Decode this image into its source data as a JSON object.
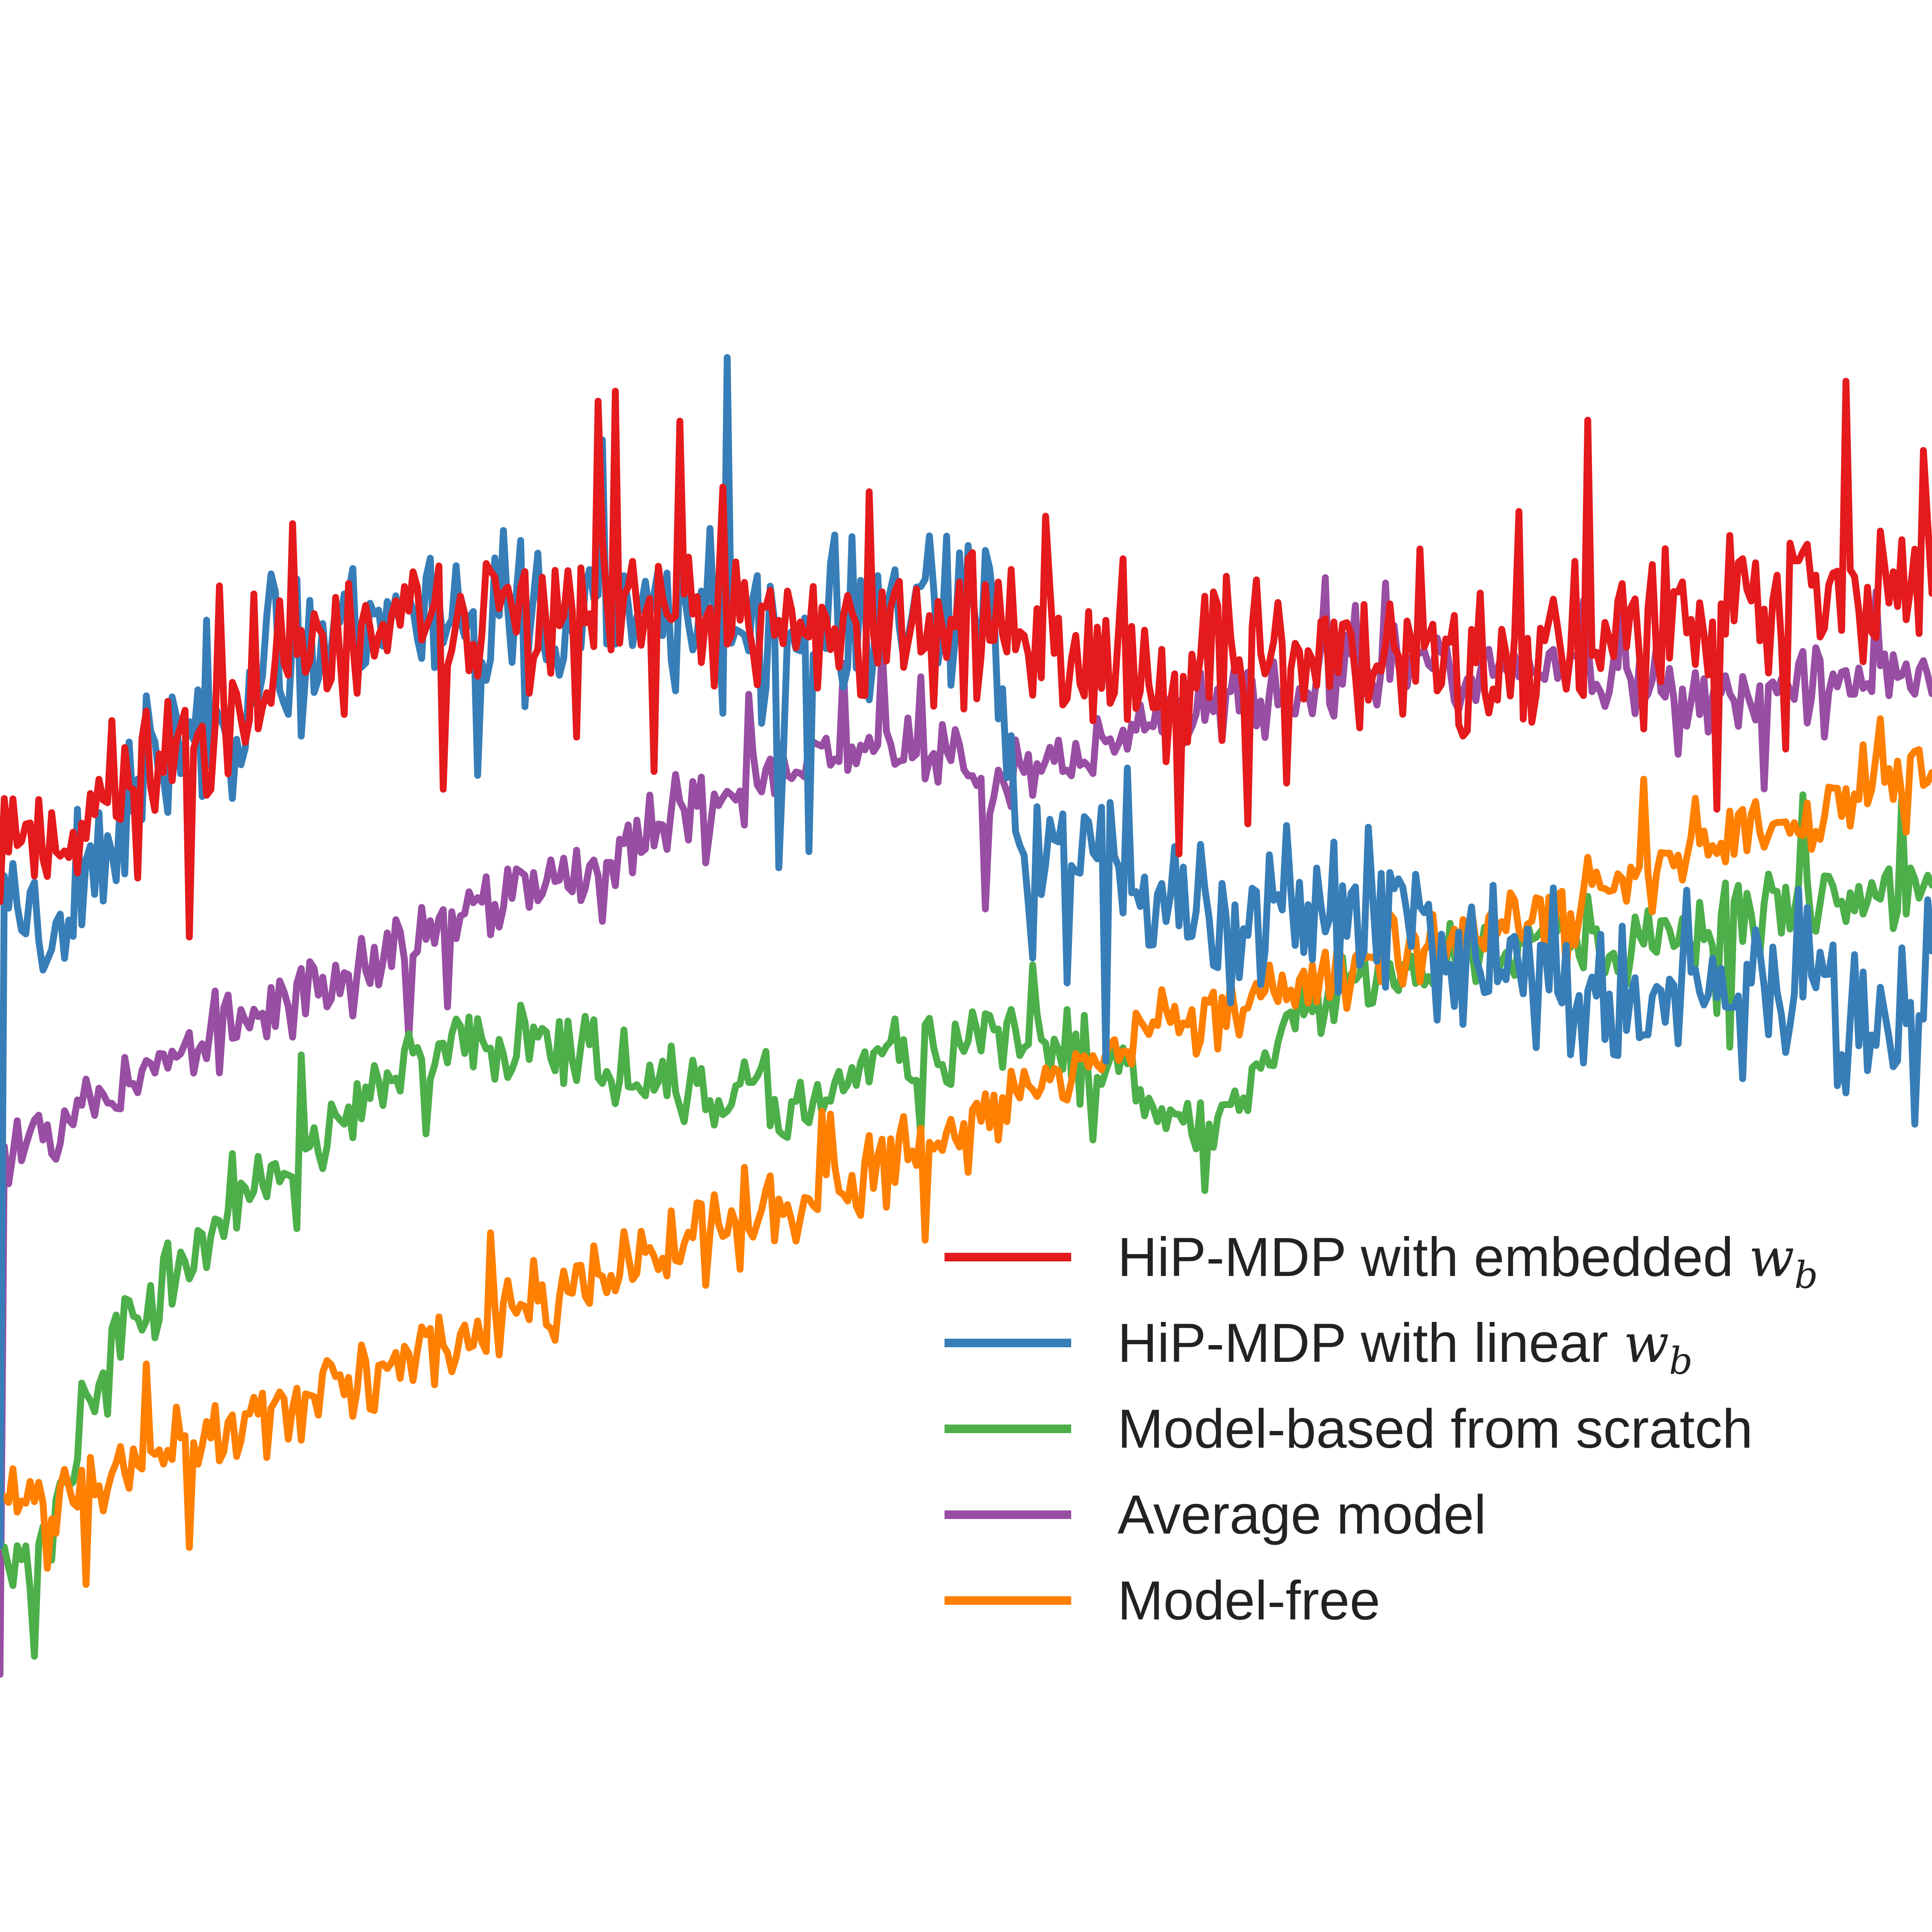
{
  "chart_data": {
    "type": "line",
    "title": "",
    "xlabel": "",
    "ylabel": "",
    "grid": false,
    "legend_position": "lower-right",
    "x": {
      "start": 0,
      "count": 450
    },
    "series": [
      {
        "key": "embedded",
        "name": "HiP-MDP with embedded ",
        "math": "w",
        "math_sub": "b",
        "color": "#e41a1c",
        "anchors": [
          [
            0,
            0.6
          ],
          [
            1,
            0.68
          ],
          [
            10,
            0.64
          ],
          [
            25,
            0.68
          ],
          [
            40,
            0.72
          ],
          [
            60,
            0.76
          ],
          [
            80,
            0.8
          ],
          [
            100,
            0.82
          ],
          [
            130,
            0.82
          ],
          [
            160,
            0.82
          ],
          [
            200,
            0.81
          ],
          [
            230,
            0.81
          ],
          [
            265,
            0.78
          ],
          [
            300,
            0.8
          ],
          [
            340,
            0.78
          ],
          [
            380,
            0.81
          ],
          [
            420,
            0.84
          ],
          [
            449,
            0.86
          ]
        ],
        "noise": 0.055,
        "seed": 11
      },
      {
        "key": "linear",
        "name": "HiP-MDP with linear ",
        "math": "w",
        "math_sub": "b",
        "color": "#377eb8",
        "anchors": [
          [
            0,
            0.1
          ],
          [
            1,
            0.62
          ],
          [
            10,
            0.58
          ],
          [
            25,
            0.65
          ],
          [
            40,
            0.72
          ],
          [
            60,
            0.77
          ],
          [
            80,
            0.82
          ],
          [
            100,
            0.83
          ],
          [
            130,
            0.82
          ],
          [
            160,
            0.82
          ],
          [
            200,
            0.81
          ],
          [
            230,
            0.83
          ],
          [
            236,
            0.67
          ],
          [
            260,
            0.63
          ],
          [
            280,
            0.58
          ],
          [
            310,
            0.6
          ],
          [
            340,
            0.56
          ],
          [
            380,
            0.52
          ],
          [
            410,
            0.53
          ],
          [
            449,
            0.52
          ]
        ],
        "noise": 0.06,
        "seed": 23
      },
      {
        "key": "scratch",
        "name": "Model-based from scratch",
        "math": "",
        "math_sub": "",
        "color": "#4daf4a",
        "anchors": [
          [
            0,
            0.1
          ],
          [
            10,
            0.09
          ],
          [
            15,
            0.15
          ],
          [
            20,
            0.2
          ],
          [
            30,
            0.27
          ],
          [
            45,
            0.33
          ],
          [
            60,
            0.38
          ],
          [
            80,
            0.43
          ],
          [
            100,
            0.48
          ],
          [
            130,
            0.5
          ],
          [
            155,
            0.45
          ],
          [
            185,
            0.44
          ],
          [
            210,
            0.48
          ],
          [
            235,
            0.49
          ],
          [
            260,
            0.48
          ],
          [
            275,
            0.42
          ],
          [
            290,
            0.45
          ],
          [
            300,
            0.52
          ],
          [
            330,
            0.55
          ],
          [
            360,
            0.58
          ],
          [
            380,
            0.56
          ],
          [
            420,
            0.6
          ],
          [
            449,
            0.61
          ]
        ],
        "noise": 0.03,
        "seed": 37
      },
      {
        "key": "average",
        "name": "Average model",
        "math": "",
        "math_sub": "",
        "color": "#984ea3",
        "anchors": [
          [
            0,
            0.0
          ],
          [
            1,
            0.41
          ],
          [
            10,
            0.43
          ],
          [
            30,
            0.46
          ],
          [
            60,
            0.51
          ],
          [
            90,
            0.56
          ],
          [
            115,
            0.6
          ],
          [
            140,
            0.64
          ],
          [
            170,
            0.69
          ],
          [
            195,
            0.72
          ],
          [
            215,
            0.72
          ],
          [
            230,
            0.68
          ],
          [
            250,
            0.72
          ],
          [
            280,
            0.75
          ],
          [
            320,
            0.78
          ],
          [
            360,
            0.78
          ],
          [
            400,
            0.76
          ],
          [
            449,
            0.78
          ]
        ],
        "noise": 0.028,
        "seed": 53
      },
      {
        "key": "modelfree",
        "name": "Model-free",
        "math": "",
        "math_sub": "",
        "color": "#ff7f00",
        "anchors": [
          [
            0,
            0.14
          ],
          [
            5,
            0.13
          ],
          [
            30,
            0.16
          ],
          [
            60,
            0.2
          ],
          [
            100,
            0.25
          ],
          [
            140,
            0.31
          ],
          [
            180,
            0.36
          ],
          [
            210,
            0.4
          ],
          [
            240,
            0.45
          ],
          [
            270,
            0.5
          ],
          [
            300,
            0.54
          ],
          [
            330,
            0.57
          ],
          [
            360,
            0.6
          ],
          [
            390,
            0.63
          ],
          [
            420,
            0.66
          ],
          [
            449,
            0.7
          ]
        ],
        "noise": 0.028,
        "seed": 71
      }
    ]
  },
  "legend": {
    "items": [
      {
        "key": "embedded",
        "label": "HiP-MDP with embedded ",
        "math": "w",
        "math_sub": "b"
      },
      {
        "key": "linear",
        "label": "HiP-MDP with linear ",
        "math": "w",
        "math_sub": "b"
      },
      {
        "key": "scratch",
        "label": "Model-based from scratch",
        "math": "",
        "math_sub": ""
      },
      {
        "key": "average",
        "label": "Average model",
        "math": "",
        "math_sub": ""
      },
      {
        "key": "modelfree",
        "label": "Model-free",
        "math": "",
        "math_sub": ""
      }
    ]
  }
}
